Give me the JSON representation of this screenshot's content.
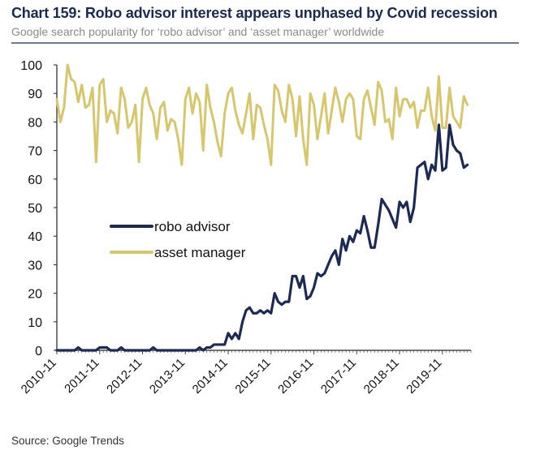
{
  "header": {
    "title": "Chart 159: Robo advisor interest appears unphased by Covid recession",
    "subtitle": "Google search popularity for ‘robo advisor’ and ‘asset manager’ worldwide"
  },
  "footer": {
    "source": "Source: Google Trends"
  },
  "chart_data": {
    "type": "line",
    "title": "Chart 159: Robo advisor interest appears unphased by Covid recession",
    "subtitle": "Google search popularity for ‘robo advisor’ and ‘asset manager’ worldwide",
    "xlabel": "",
    "ylabel": "",
    "ylim": [
      0,
      100
    ],
    "yticks": [
      0,
      10,
      20,
      30,
      40,
      50,
      60,
      70,
      80,
      90,
      100
    ],
    "xrange": [
      "2010-11",
      "2020-07"
    ],
    "xticks": [
      "2010-11",
      "2011-11",
      "2012-11",
      "2013-11",
      "2014-11",
      "2015-11",
      "2016-11",
      "2017-11",
      "2018-11",
      "2019-11"
    ],
    "grid": false,
    "legend_position": "center-left",
    "series": [
      {
        "name": "robo advisor",
        "color": "#1c2a55",
        "values": [
          0,
          0,
          0,
          0,
          0,
          0,
          1,
          0,
          0,
          0,
          0,
          0,
          1,
          1,
          1,
          0,
          0,
          0,
          1,
          0,
          0,
          0,
          0,
          0,
          0,
          0,
          0,
          1,
          0,
          0,
          0,
          0,
          0,
          0,
          0,
          0,
          0,
          0,
          0,
          0,
          1,
          0,
          1,
          1,
          2,
          2,
          2,
          2,
          6,
          4,
          6,
          4,
          10,
          14,
          15,
          13,
          13,
          14,
          13,
          14,
          13,
          20,
          17,
          16,
          17,
          17,
          26,
          26,
          22,
          26,
          18,
          19,
          22,
          27,
          26,
          27,
          30,
          33,
          35,
          30,
          39,
          35,
          40,
          38,
          42,
          41,
          47,
          42,
          36,
          36,
          44,
          53,
          51,
          49,
          46,
          43,
          52,
          50,
          52,
          45,
          50,
          64,
          65,
          66,
          60,
          65,
          63,
          79,
          63,
          64,
          79,
          72,
          70,
          69,
          64,
          65
        ]
      },
      {
        "name": "asset manager",
        "color": "#d7c66c",
        "values": [
          88,
          80,
          85,
          100,
          95,
          94,
          87,
          93,
          85,
          86,
          92,
          66,
          93,
          95,
          80,
          84,
          83,
          76,
          92,
          88,
          78,
          80,
          86,
          66,
          88,
          92,
          86,
          83,
          74,
          85,
          87,
          77,
          81,
          80,
          74,
          65,
          88,
          92,
          83,
          90,
          87,
          70,
          93,
          85,
          80,
          73,
          68,
          83,
          90,
          92,
          84,
          79,
          76,
          83,
          90,
          74,
          86,
          85,
          79,
          74,
          65,
          93,
          91,
          84,
          80,
          93,
          88,
          75,
          89,
          74,
          65,
          90,
          86,
          74,
          82,
          90,
          76,
          84,
          92,
          87,
          80,
          88,
          90,
          88,
          75,
          74,
          88,
          91,
          85,
          79,
          94,
          91,
          80,
          81,
          74,
          92,
          82,
          88,
          88,
          85,
          87,
          78,
          84,
          84,
          92,
          82,
          77,
          96,
          78,
          78,
          92,
          82,
          80,
          78,
          89,
          86
        ]
      }
    ]
  }
}
